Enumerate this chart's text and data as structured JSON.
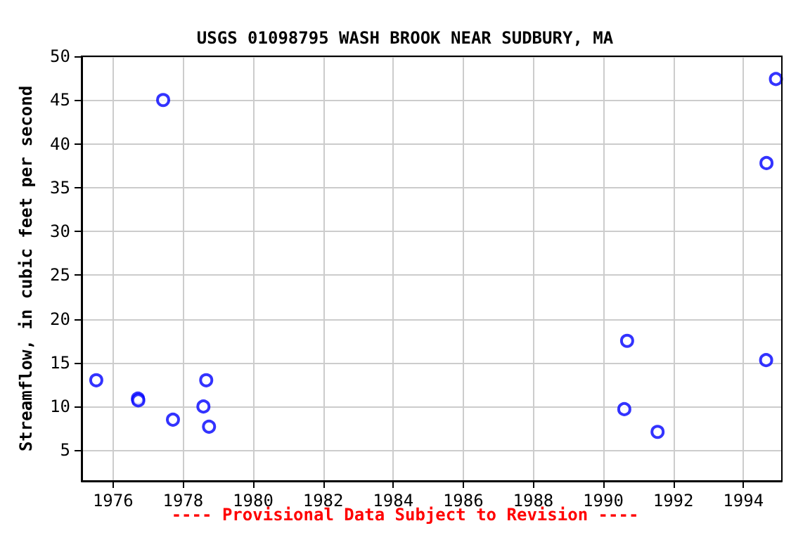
{
  "chart_data": {
    "type": "scatter",
    "title": "USGS 01098795 WASH BROOK NEAR SUDBURY, MA",
    "ylabel": "Streamflow, in cubic feet per second",
    "x": [
      1975.52,
      1976.71,
      1976.72,
      1977.43,
      1977.71,
      1978.58,
      1978.66,
      1978.74,
      1990.6,
      1990.68,
      1991.55,
      1994.65,
      1994.66,
      1994.93
    ],
    "series": [
      {
        "color": "#0000ff",
        "values": [
          13.0,
          10.9,
          10.7,
          45.0,
          8.5,
          10.0,
          13.0,
          7.7,
          9.7,
          17.5,
          7.1,
          15.3,
          37.8,
          47.4
        ]
      }
    ],
    "xlim": [
      1975.1,
      1995.1
    ],
    "xticks": [
      1976,
      1978,
      1980,
      1982,
      1984,
      1986,
      1988,
      1990,
      1992,
      1994
    ],
    "ylim": [
      1.5,
      50
    ],
    "yticks": [
      5,
      10,
      15,
      20,
      25,
      30,
      35,
      40,
      45,
      50
    ],
    "grid": true,
    "marker": "circle",
    "annotations": [
      "---- Provisional Data Subject to Revision ----"
    ]
  }
}
